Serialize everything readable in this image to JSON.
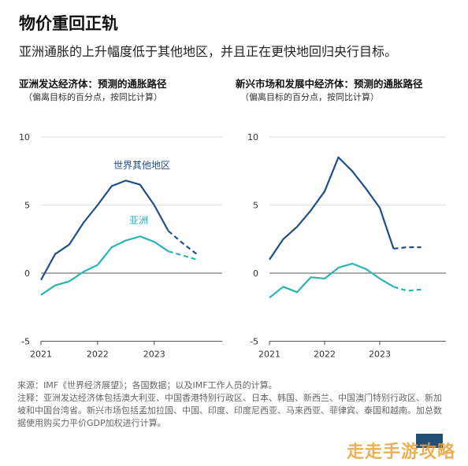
{
  "header": {
    "title": "物价重回正轨",
    "subtitle": "亚洲通胀的上升幅度低于其他地区，并且正在更快地回归央行目标。"
  },
  "colors": {
    "world": "#1f4e8c",
    "asia": "#2bb5b0",
    "grid": "#d9d9d9",
    "axis": "#555555"
  },
  "panels": [
    {
      "title": "亚洲发达经济体：预测的通胀路径",
      "note": "（偏离目标的百分点，按同比计算）"
    },
    {
      "title": "新兴市场和发展中经济体：预测的通胀路径",
      "note": "（偏离目标的百分点，按同比计算）"
    }
  ],
  "chart_data": [
    {
      "type": "line",
      "title": "亚洲发达经济体：预测的通胀路径",
      "ylabel": "偏离目标的百分点，按同比计算",
      "ylim": [
        -5,
        10
      ],
      "yticks": [
        10,
        5,
        0,
        -5
      ],
      "xticks": [
        "2021",
        "2022",
        "2023"
      ],
      "xlim": [
        2021.0,
        2024.2
      ],
      "x": [
        2021.0,
        2021.25,
        2021.5,
        2021.75,
        2022.0,
        2022.25,
        2022.5,
        2022.75,
        2023.0,
        2023.25,
        2023.5,
        2023.75,
        2024.0
      ],
      "series": [
        {
          "name": "世界其他地区",
          "values": [
            -0.5,
            1.4,
            2.1,
            3.7,
            5.0,
            6.4,
            6.8,
            6.5,
            5.0,
            3.1,
            2.2,
            1.4,
            null
          ],
          "forecast_from_index": 9
        },
        {
          "name": "亚洲",
          "values": [
            -1.6,
            -0.9,
            -0.6,
            0.1,
            0.6,
            1.9,
            2.4,
            2.7,
            2.3,
            1.6,
            1.3,
            1.0,
            null
          ],
          "forecast_from_index": 9
        }
      ]
    },
    {
      "type": "line",
      "title": "新兴市场和发展中经济体：预测的通胀路径",
      "ylabel": "偏离目标的百分点，按同比计算",
      "ylim": [
        -5,
        10
      ],
      "yticks": [
        10,
        5,
        0,
        -5
      ],
      "xticks": [
        "2021",
        "2022",
        "2023"
      ],
      "xlim": [
        2021.0,
        2024.2
      ],
      "x": [
        2021.0,
        2021.25,
        2021.5,
        2021.75,
        2022.0,
        2022.25,
        2022.5,
        2022.75,
        2023.0,
        2023.25,
        2023.5,
        2023.75,
        2024.0
      ],
      "series": [
        {
          "name": "世界其他地区",
          "values": [
            1.0,
            2.5,
            3.4,
            4.6,
            6.0,
            8.5,
            7.5,
            6.2,
            4.8,
            1.8,
            1.9,
            1.9,
            null
          ],
          "forecast_from_index": 9
        },
        {
          "name": "亚洲",
          "values": [
            -1.8,
            -1.0,
            -1.4,
            -0.3,
            -0.4,
            0.4,
            0.7,
            0.3,
            -0.4,
            -1.0,
            -1.3,
            -1.2,
            null
          ],
          "forecast_from_index": 9
        }
      ]
    }
  ],
  "series_labels": {
    "world": "世界其他地区",
    "asia": "亚洲"
  },
  "footer": {
    "source": "来源：IMF《世界经济展望》；各国数据；以及IMF工作人员的计算。",
    "note": "注释：亚洲发达经济体包括澳大利亚、中国香港特别行政区、日本、韩国、新西兰、中国澳门特别行政区、新加坡和中国台湾省。新兴市场包括孟加拉国、中国、印度、印度尼西亚、马来西亚、菲律宾、泰国和越南。加总数据使用购买力平价GDP加权进行计算。"
  },
  "watermark": "走走手游攻略"
}
